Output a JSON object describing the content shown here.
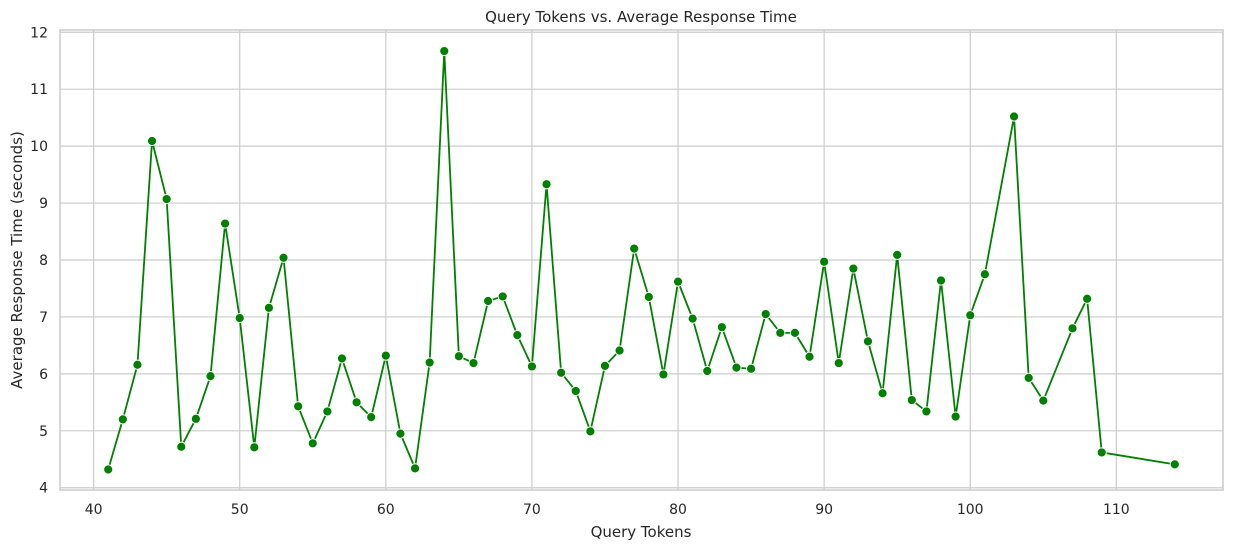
{
  "chart_data": {
    "type": "line",
    "title": "Query Tokens vs. Average Response Time",
    "xlabel": "Query Tokens",
    "ylabel": "Average Response Time (seconds)",
    "xlim": [
      37.7,
      117.3
    ],
    "ylim": [
      3.96,
      12.04
    ],
    "xticks": [
      40,
      50,
      60,
      70,
      80,
      90,
      100,
      110
    ],
    "yticks": [
      4,
      5,
      6,
      7,
      8,
      9,
      10,
      11,
      12
    ],
    "grid": true,
    "colors": {
      "line": "#008000",
      "marker": "#008000",
      "marker_edge": "#ffffff",
      "grid": "#cccccc"
    },
    "series": [
      {
        "marker": "circle",
        "x": [
          41,
          42,
          43,
          44,
          45,
          46,
          47,
          48,
          49,
          50,
          51,
          52,
          53,
          54,
          55,
          56,
          57,
          58,
          59,
          60,
          61,
          62,
          63,
          64,
          65,
          66,
          67,
          68,
          69,
          70,
          71,
          72,
          73,
          74,
          75,
          76,
          77,
          78,
          79,
          80,
          81,
          82,
          83,
          84,
          85,
          86,
          87,
          88,
          89,
          90,
          91,
          92,
          93,
          94,
          95,
          96,
          97,
          98,
          99,
          100,
          101,
          103,
          104,
          105,
          107,
          108,
          109,
          114
        ],
        "y": [
          4.32,
          5.2,
          6.16,
          10.09,
          9.07,
          4.72,
          5.21,
          5.96,
          8.64,
          6.98,
          4.71,
          7.16,
          8.04,
          5.43,
          4.78,
          5.34,
          6.27,
          5.5,
          5.24,
          6.32,
          4.95,
          4.34,
          6.2,
          11.67,
          6.31,
          6.19,
          7.28,
          7.36,
          6.68,
          6.13,
          9.33,
          6.02,
          5.7,
          4.99,
          6.14,
          6.41,
          8.2,
          7.35,
          5.99,
          7.62,
          6.97,
          6.05,
          6.82,
          6.11,
          6.09,
          7.05,
          6.72,
          6.72,
          6.3,
          7.97,
          6.19,
          7.85,
          6.57,
          5.66,
          8.09,
          5.54,
          5.34,
          7.64,
          5.25,
          7.03,
          7.75,
          10.52,
          5.93,
          5.53,
          6.8,
          7.32,
          4.62,
          4.41
        ]
      }
    ]
  }
}
